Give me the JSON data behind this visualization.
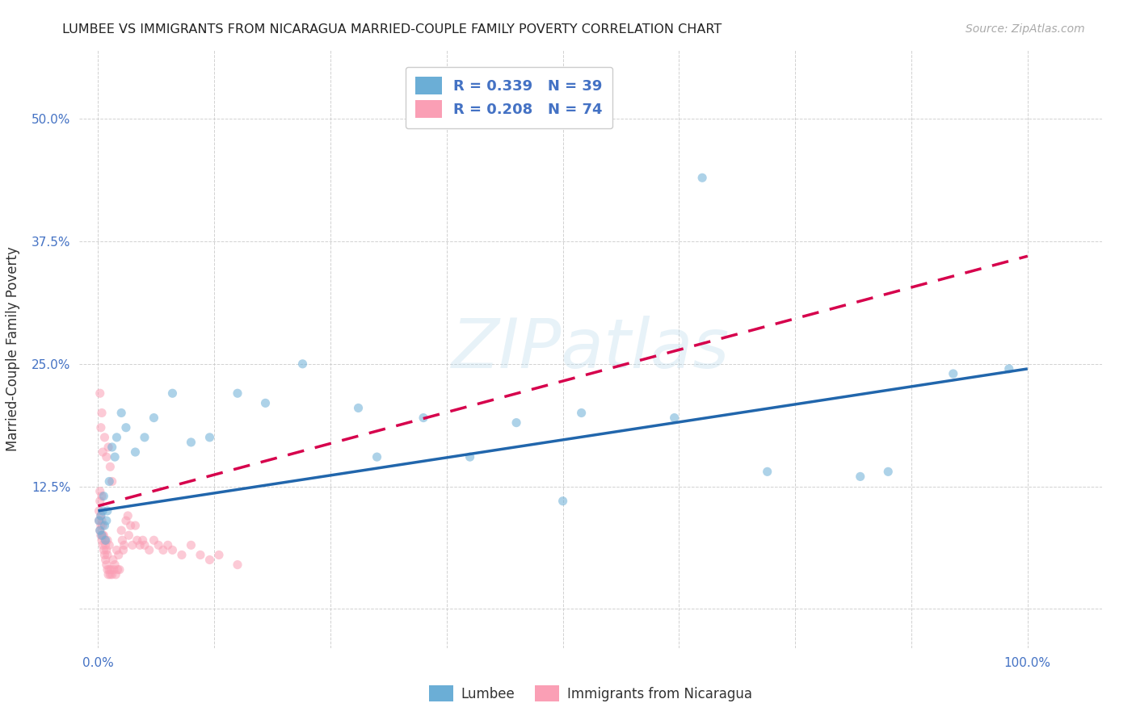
{
  "title": "LUMBEE VS IMMIGRANTS FROM NICARAGUA MARRIED-COUPLE FAMILY POVERTY CORRELATION CHART",
  "source": "Source: ZipAtlas.com",
  "ylabel_label": "Married-Couple Family Poverty",
  "xlim": [
    -0.02,
    1.08
  ],
  "ylim": [
    -0.04,
    0.57
  ],
  "lumbee_color": "#6baed6",
  "lumbee_line_color": "#2166ac",
  "nicaragua_color": "#fa9fb5",
  "nicaragua_line_color": "#d6004c",
  "lumbee_R": 0.339,
  "lumbee_N": 39,
  "nicaragua_R": 0.208,
  "nicaragua_N": 74,
  "watermark_text": "ZIPatlas",
  "background_color": "#ffffff",
  "grid_color": "#cccccc",
  "tick_color": "#4472c4",
  "dot_size": 65,
  "dot_alpha": 0.55,
  "line_width": 2.5,
  "lumbee_legend_label": "Lumbee",
  "nicaragua_legend_label": "Immigrants from Nicaragua",
  "lumbee_x": [
    0.001,
    0.002,
    0.003,
    0.004,
    0.005,
    0.006,
    0.007,
    0.008,
    0.009,
    0.01,
    0.012,
    0.015,
    0.018,
    0.02,
    0.025,
    0.03,
    0.04,
    0.05,
    0.06,
    0.08,
    0.1,
    0.12,
    0.15,
    0.18,
    0.22,
    0.28,
    0.35,
    0.45,
    0.52,
    0.62,
    0.65,
    0.72,
    0.82,
    0.85,
    0.92,
    0.98,
    0.3,
    0.4,
    0.5
  ],
  "lumbee_y": [
    0.09,
    0.08,
    0.095,
    0.075,
    0.1,
    0.115,
    0.085,
    0.07,
    0.09,
    0.1,
    0.13,
    0.165,
    0.155,
    0.175,
    0.2,
    0.185,
    0.16,
    0.175,
    0.195,
    0.22,
    0.17,
    0.175,
    0.22,
    0.21,
    0.25,
    0.205,
    0.195,
    0.19,
    0.2,
    0.195,
    0.44,
    0.14,
    0.135,
    0.14,
    0.24,
    0.245,
    0.155,
    0.155,
    0.11
  ],
  "nicaragua_x": [
    0.001,
    0.001,
    0.002,
    0.002,
    0.002,
    0.003,
    0.003,
    0.003,
    0.004,
    0.004,
    0.004,
    0.005,
    0.005,
    0.005,
    0.006,
    0.006,
    0.007,
    0.007,
    0.008,
    0.008,
    0.009,
    0.009,
    0.01,
    0.01,
    0.01,
    0.011,
    0.012,
    0.012,
    0.013,
    0.014,
    0.015,
    0.016,
    0.017,
    0.018,
    0.019,
    0.02,
    0.021,
    0.022,
    0.023,
    0.025,
    0.026,
    0.027,
    0.028,
    0.03,
    0.032,
    0.033,
    0.035,
    0.037,
    0.04,
    0.042,
    0.045,
    0.048,
    0.05,
    0.055,
    0.06,
    0.065,
    0.07,
    0.075,
    0.08,
    0.09,
    0.1,
    0.11,
    0.12,
    0.13,
    0.15,
    0.005,
    0.007,
    0.009,
    0.011,
    0.013,
    0.015,
    0.002,
    0.003,
    0.004
  ],
  "nicaragua_y": [
    0.09,
    0.1,
    0.08,
    0.11,
    0.12,
    0.075,
    0.085,
    0.095,
    0.07,
    0.09,
    0.115,
    0.065,
    0.075,
    0.085,
    0.06,
    0.075,
    0.055,
    0.07,
    0.05,
    0.065,
    0.045,
    0.06,
    0.04,
    0.055,
    0.07,
    0.035,
    0.04,
    0.065,
    0.035,
    0.04,
    0.035,
    0.05,
    0.04,
    0.045,
    0.035,
    0.06,
    0.04,
    0.055,
    0.04,
    0.08,
    0.07,
    0.06,
    0.065,
    0.09,
    0.095,
    0.075,
    0.085,
    0.065,
    0.085,
    0.07,
    0.065,
    0.07,
    0.065,
    0.06,
    0.07,
    0.065,
    0.06,
    0.065,
    0.06,
    0.055,
    0.065,
    0.055,
    0.05,
    0.055,
    0.045,
    0.16,
    0.175,
    0.155,
    0.165,
    0.145,
    0.13,
    0.22,
    0.185,
    0.2
  ],
  "lumbee_line_x0": 0.0,
  "lumbee_line_y0": 0.1,
  "lumbee_line_x1": 1.0,
  "lumbee_line_y1": 0.245,
  "nic_line_x0": 0.0,
  "nic_line_y0": 0.105,
  "nic_line_x1": 1.0,
  "nic_line_y1": 0.36
}
